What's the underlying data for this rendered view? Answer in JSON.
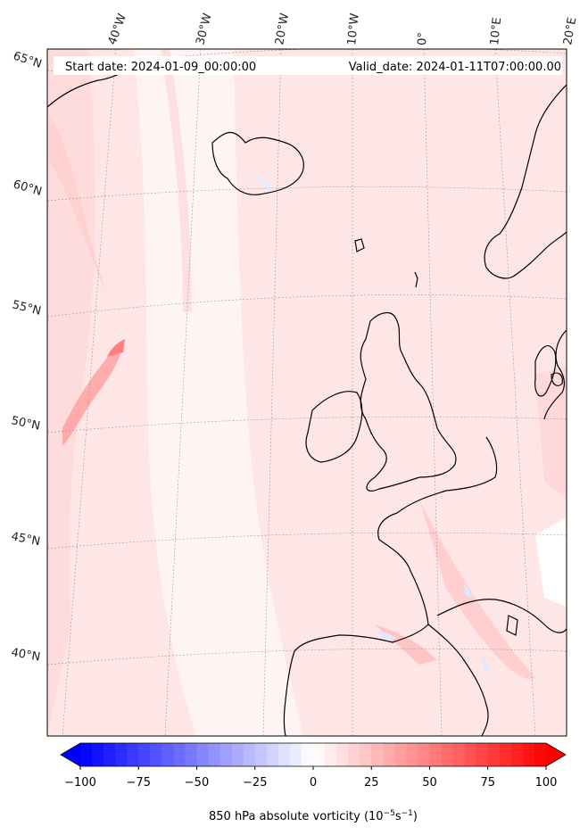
{
  "header": {
    "start_date": "Start date: 2024-01-09_00:00:00",
    "valid_date": "Valid_date: 2024-01-11T07:00:00.00"
  },
  "longitude_labels": [
    "40°W",
    "30°W",
    "20°W",
    "10°W",
    "0°",
    "10°E",
    "20°E"
  ],
  "latitude_labels": [
    "65°N",
    "60°N",
    "55°N",
    "50°N",
    "45°N",
    "40°N"
  ],
  "colorbar": {
    "min": -100,
    "max": 100,
    "levels": 40,
    "ticks": [
      "−100",
      "−75",
      "−50",
      "−25",
      "0",
      "25",
      "50",
      "75",
      "100"
    ],
    "label": "850 hPa absolute vorticity (10",
    "label_exp1": "−5",
    "label_mid": "s",
    "label_exp2": "−1",
    "label_end": ")",
    "low_color": "#0000ff",
    "mid_color": "#ffffff",
    "high_color": "#ff0000"
  },
  "colors": {
    "coastline": "#000000",
    "background_field": "#ffe6e6",
    "gridline": "#999999"
  }
}
